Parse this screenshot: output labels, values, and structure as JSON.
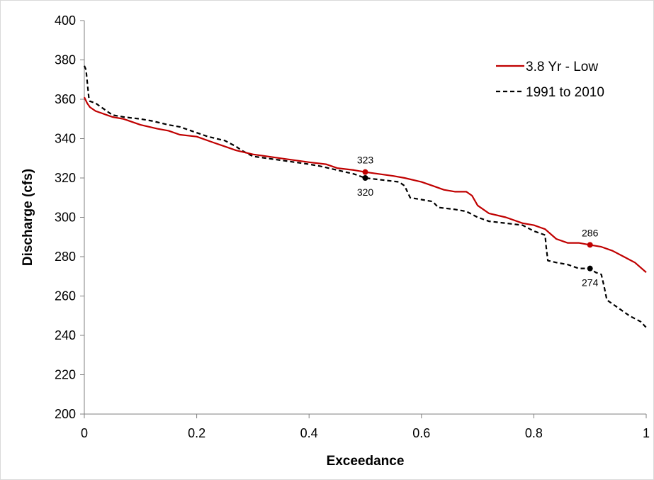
{
  "chart_data": {
    "type": "line",
    "title": "",
    "xlabel": "Exceedance",
    "ylabel": "Discharge (cfs)",
    "xlim": [
      0,
      1
    ],
    "ylim": [
      200,
      400
    ],
    "xticks": [
      0,
      0.2,
      0.4,
      0.6,
      0.8,
      1
    ],
    "xtick_labels": [
      "0",
      "0.2",
      "0.4",
      "0.6",
      "0.8",
      "1"
    ],
    "yticks": [
      200,
      220,
      240,
      260,
      280,
      300,
      320,
      340,
      360,
      380,
      400
    ],
    "ytick_labels": [
      "200",
      "220",
      "240",
      "260",
      "280",
      "300",
      "320",
      "340",
      "360",
      "380",
      "400"
    ],
    "grid": false,
    "legend_position": "top-right",
    "series": [
      {
        "name": "3.8 Yr - Low",
        "color": "#c00000",
        "dash": "solid",
        "points": [
          [
            0,
            361
          ],
          [
            0.005,
            358
          ],
          [
            0.01,
            356
          ],
          [
            0.02,
            354
          ],
          [
            0.03,
            353
          ],
          [
            0.04,
            352
          ],
          [
            0.05,
            351
          ],
          [
            0.07,
            350
          ],
          [
            0.1,
            347
          ],
          [
            0.13,
            345
          ],
          [
            0.15,
            344
          ],
          [
            0.17,
            342
          ],
          [
            0.2,
            341
          ],
          [
            0.23,
            338
          ],
          [
            0.25,
            336
          ],
          [
            0.27,
            334
          ],
          [
            0.3,
            332
          ],
          [
            0.35,
            330
          ],
          [
            0.4,
            328
          ],
          [
            0.43,
            327
          ],
          [
            0.45,
            325
          ],
          [
            0.48,
            324
          ],
          [
            0.5,
            323
          ],
          [
            0.55,
            321
          ],
          [
            0.57,
            320
          ],
          [
            0.6,
            318
          ],
          [
            0.62,
            316
          ],
          [
            0.64,
            314
          ],
          [
            0.66,
            313
          ],
          [
            0.68,
            313
          ],
          [
            0.69,
            311
          ],
          [
            0.7,
            306
          ],
          [
            0.72,
            302
          ],
          [
            0.75,
            300
          ],
          [
            0.78,
            297
          ],
          [
            0.8,
            296
          ],
          [
            0.82,
            294
          ],
          [
            0.84,
            289
          ],
          [
            0.86,
            287
          ],
          [
            0.88,
            287
          ],
          [
            0.9,
            286
          ],
          [
            0.92,
            285
          ],
          [
            0.94,
            283
          ],
          [
            0.96,
            280
          ],
          [
            0.98,
            277
          ],
          [
            1,
            272
          ]
        ]
      },
      {
        "name": "1991 to 2010",
        "color": "#000000",
        "dash": "dashed",
        "points": [
          [
            0,
            377
          ],
          [
            0.003,
            375
          ],
          [
            0.008,
            361
          ],
          [
            0.01,
            359
          ],
          [
            0.02,
            358
          ],
          [
            0.03,
            356
          ],
          [
            0.05,
            352
          ],
          [
            0.07,
            351
          ],
          [
            0.1,
            350
          ],
          [
            0.12,
            349
          ],
          [
            0.15,
            347
          ],
          [
            0.17,
            346
          ],
          [
            0.2,
            343
          ],
          [
            0.22,
            341
          ],
          [
            0.25,
            339
          ],
          [
            0.27,
            336
          ],
          [
            0.28,
            334
          ],
          [
            0.3,
            331
          ],
          [
            0.35,
            329
          ],
          [
            0.4,
            327
          ],
          [
            0.42,
            326
          ],
          [
            0.45,
            324
          ],
          [
            0.48,
            322
          ],
          [
            0.5,
            320
          ],
          [
            0.53,
            319
          ],
          [
            0.56,
            318
          ],
          [
            0.57,
            316
          ],
          [
            0.58,
            310
          ],
          [
            0.6,
            309
          ],
          [
            0.62,
            308
          ],
          [
            0.63,
            305
          ],
          [
            0.66,
            304
          ],
          [
            0.68,
            303
          ],
          [
            0.7,
            300
          ],
          [
            0.72,
            298
          ],
          [
            0.75,
            297
          ],
          [
            0.78,
            296
          ],
          [
            0.8,
            293
          ],
          [
            0.82,
            291
          ],
          [
            0.822,
            285
          ],
          [
            0.825,
            278
          ],
          [
            0.84,
            277
          ],
          [
            0.86,
            276
          ],
          [
            0.88,
            274
          ],
          [
            0.9,
            274
          ],
          [
            0.91,
            272
          ],
          [
            0.92,
            271
          ],
          [
            0.925,
            265
          ],
          [
            0.93,
            258
          ],
          [
            0.95,
            254
          ],
          [
            0.97,
            250
          ],
          [
            0.99,
            247
          ],
          [
            1,
            244
          ]
        ]
      }
    ],
    "annotations": [
      {
        "series": 0,
        "x": 0.5,
        "y": 323,
        "label": "323",
        "placement": "above"
      },
      {
        "series": 1,
        "x": 0.5,
        "y": 320,
        "label": "320",
        "placement": "below"
      },
      {
        "series": 0,
        "x": 0.9,
        "y": 286,
        "label": "286",
        "placement": "above"
      },
      {
        "series": 1,
        "x": 0.9,
        "y": 274,
        "label": "274",
        "placement": "below"
      }
    ]
  }
}
